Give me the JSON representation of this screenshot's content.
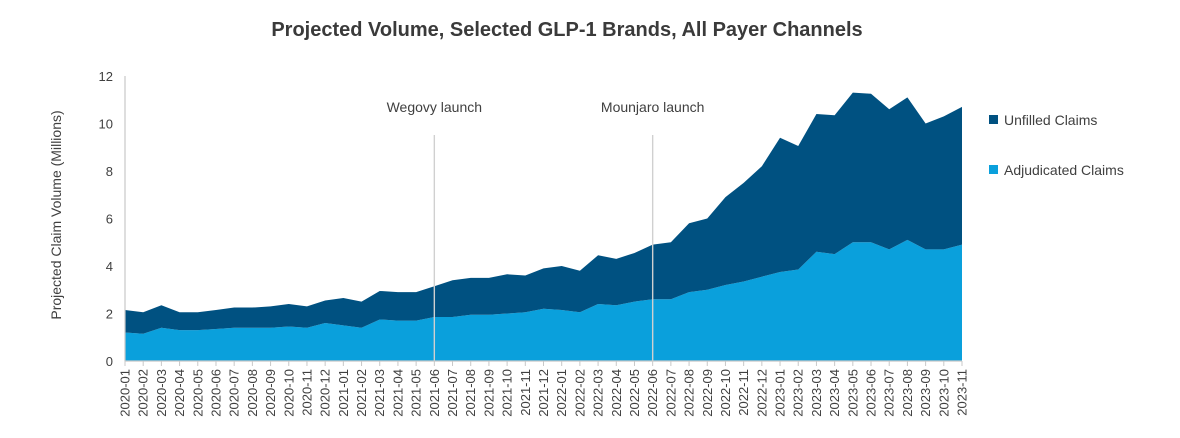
{
  "chart_data": {
    "type": "area",
    "title": "Projected Volume, Selected GLP-1 Brands, All Payer Channels",
    "ylabel": "Projected Claim Volume (Millions)",
    "xlabel": "",
    "ylim": [
      0,
      12
    ],
    "yticks": [
      0,
      2,
      4,
      6,
      8,
      10,
      12
    ],
    "stacked": true,
    "grid": false,
    "legend_position": "right",
    "categories": [
      "2020-01",
      "2020-02",
      "2020-03",
      "2020-04",
      "2020-05",
      "2020-06",
      "2020-07",
      "2020-08",
      "2020-09",
      "2020-10",
      "2020-11",
      "2020-12",
      "2021-01",
      "2021-02",
      "2021-03",
      "2021-04",
      "2021-05",
      "2021-06",
      "2021-07",
      "2021-08",
      "2021-09",
      "2021-10",
      "2021-11",
      "2021-12",
      "2022-01",
      "2022-02",
      "2022-03",
      "2022-04",
      "2022-05",
      "2022-06",
      "2022-07",
      "2022-08",
      "2022-09",
      "2022-10",
      "2022-11",
      "2022-12",
      "2023-01",
      "2023-02",
      "2023-03",
      "2023-04",
      "2023-05",
      "2023-06",
      "2023-07",
      "2023-08",
      "2023-09",
      "2023-10",
      "2023-11"
    ],
    "series": [
      {
        "name": "Adjudicated Claims",
        "color": "#0aa0dc",
        "values": [
          1.2,
          1.15,
          1.4,
          1.3,
          1.3,
          1.35,
          1.4,
          1.4,
          1.4,
          1.45,
          1.4,
          1.6,
          1.5,
          1.4,
          1.75,
          1.7,
          1.7,
          1.85,
          1.85,
          1.95,
          1.95,
          2.0,
          2.05,
          2.2,
          2.15,
          2.05,
          2.4,
          2.35,
          2.5,
          2.6,
          2.6,
          2.9,
          3.0,
          3.2,
          3.35,
          3.55,
          3.75,
          3.85,
          4.6,
          4.5,
          5.0,
          5.0,
          4.7,
          5.1,
          4.7,
          4.7,
          4.9
        ]
      },
      {
        "name": "Unfilled Claims",
        "color": "#005181",
        "values": [
          0.95,
          0.9,
          0.95,
          0.75,
          0.75,
          0.8,
          0.85,
          0.85,
          0.9,
          0.95,
          0.9,
          0.95,
          1.15,
          1.1,
          1.2,
          1.2,
          1.2,
          1.3,
          1.55,
          1.55,
          1.55,
          1.65,
          1.55,
          1.7,
          1.85,
          1.75,
          2.05,
          1.95,
          2.05,
          2.3,
          2.4,
          2.9,
          3.0,
          3.7,
          4.15,
          4.65,
          5.65,
          5.2,
          5.8,
          5.85,
          6.3,
          6.25,
          5.9,
          6.0,
          5.3,
          5.6,
          5.8
        ]
      }
    ],
    "annotations": [
      {
        "label": "Wegovy launch",
        "x": "2021-06"
      },
      {
        "label": "Mounjaro launch",
        "x": "2022-06"
      }
    ],
    "legend": [
      "Unfilled Claims",
      "Adjudicated Claims"
    ]
  }
}
